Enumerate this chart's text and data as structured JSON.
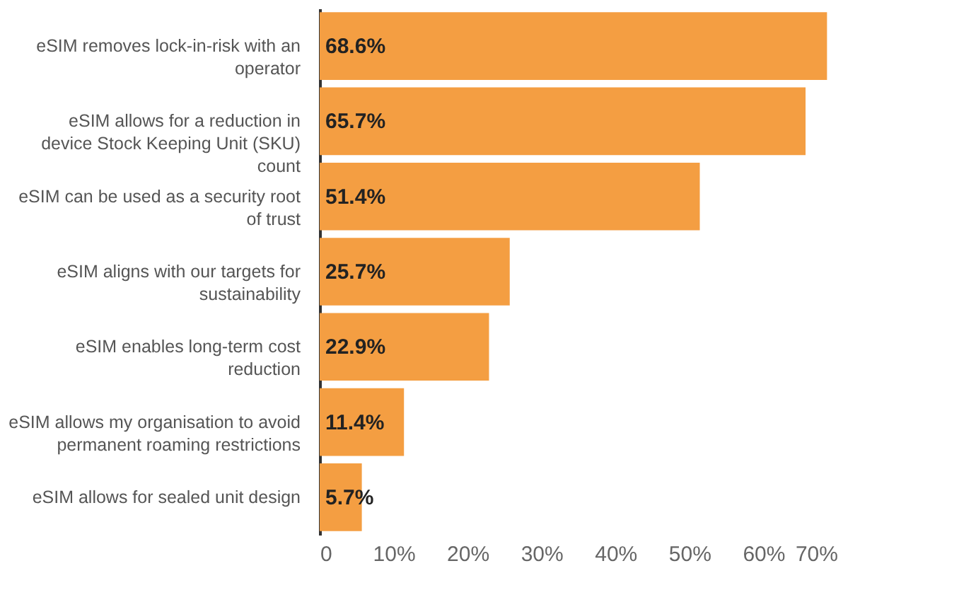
{
  "chart_data": {
    "type": "bar",
    "orientation": "horizontal",
    "categories": [
      "eSIM removes lock-in-risk with an operator",
      "eSIM allows for a reduction in device Stock Keeping Unit (SKU) count",
      "eSIM can be used as a security root of trust",
      "eSIM aligns with our targets for sustainability",
      "eSIM enables long-term cost reduction",
      "eSIM allows my organisation to avoid permanent roaming restrictions",
      "eSIM allows for sealed unit design"
    ],
    "values": [
      68.6,
      65.7,
      51.4,
      25.7,
      22.9,
      11.4,
      5.7
    ],
    "value_labels": [
      "68.6%",
      "65.7%",
      "51.4%",
      "25.7%",
      "22.9%",
      "11.4%",
      "5.7%"
    ],
    "color": "#f49e42",
    "xlim": [
      0,
      70
    ],
    "xticks": [
      {
        "value": 0,
        "label": "0"
      },
      {
        "value": 10,
        "label": "10%"
      },
      {
        "value": 20,
        "label": "20%"
      },
      {
        "value": 30,
        "label": "30%"
      },
      {
        "value": 40,
        "label": "40%"
      },
      {
        "value": 50,
        "label": "50%"
      },
      {
        "value": 60,
        "label": "60%"
      },
      {
        "value": 70,
        "label": "70%"
      }
    ],
    "grid": false
  }
}
